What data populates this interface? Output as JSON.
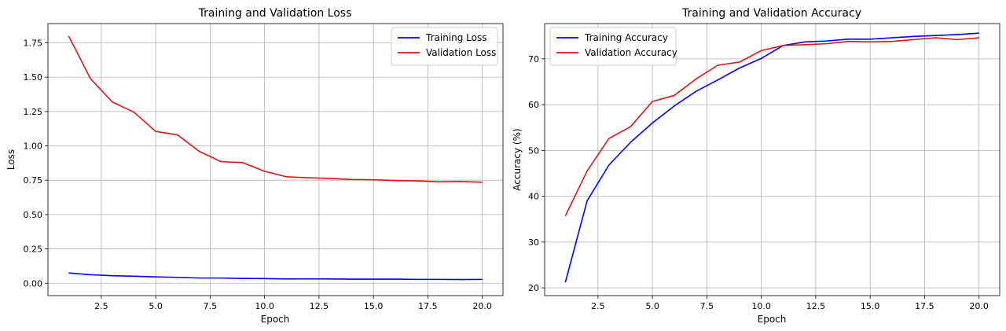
{
  "chart_data": [
    {
      "type": "line",
      "title": "Training and Validation Loss",
      "xlabel": "Epoch",
      "ylabel": "Loss",
      "xlim": [
        0.05,
        20.95
      ],
      "ylim": [
        -0.09,
        1.89
      ],
      "xticks": [
        2.5,
        5.0,
        7.5,
        10.0,
        12.5,
        15.0,
        17.5,
        20.0
      ],
      "xtick_labels": [
        "2.5",
        "5.0",
        "7.5",
        "10.0",
        "12.5",
        "15.0",
        "17.5",
        "20.0"
      ],
      "yticks": [
        0.0,
        0.25,
        0.5,
        0.75,
        1.0,
        1.25,
        1.5,
        1.75
      ],
      "ytick_labels": [
        "0.00",
        "0.25",
        "0.50",
        "0.75",
        "1.00",
        "1.25",
        "1.50",
        "1.75"
      ],
      "grid": true,
      "legend_position": "top-right",
      "x": [
        1,
        2,
        3,
        4,
        5,
        6,
        7,
        8,
        9,
        10,
        11,
        12,
        13,
        14,
        15,
        16,
        17,
        18,
        19,
        20
      ],
      "series": [
        {
          "name": "Training Loss",
          "color": "#0000ff",
          "values": [
            0.075,
            0.062,
            0.055,
            0.051,
            0.046,
            0.043,
            0.038,
            0.038,
            0.035,
            0.034,
            0.031,
            0.032,
            0.031,
            0.03,
            0.03,
            0.03,
            0.028,
            0.028,
            0.027,
            0.028
          ]
        },
        {
          "name": "Validation Loss",
          "color": "#dc1414",
          "values": [
            1.8,
            1.49,
            1.32,
            1.245,
            1.105,
            1.08,
            0.96,
            0.885,
            0.878,
            0.815,
            0.775,
            0.768,
            0.763,
            0.755,
            0.753,
            0.748,
            0.745,
            0.738,
            0.74,
            0.735
          ]
        }
      ]
    },
    {
      "type": "line",
      "title": "Training and Validation Accuracy",
      "xlabel": "Epoch",
      "ylabel": "Accuracy (%)",
      "xlim": [
        0.05,
        20.95
      ],
      "ylim": [
        18.3,
        77.7
      ],
      "xticks": [
        2.5,
        5.0,
        7.5,
        10.0,
        12.5,
        15.0,
        17.5,
        20.0
      ],
      "xtick_labels": [
        "2.5",
        "5.0",
        "7.5",
        "10.0",
        "12.5",
        "15.0",
        "17.5",
        "20.0"
      ],
      "yticks": [
        20,
        30,
        40,
        50,
        60,
        70
      ],
      "ytick_labels": [
        "20",
        "30",
        "40",
        "50",
        "60",
        "70"
      ],
      "grid": true,
      "legend_position": "top-left",
      "x": [
        1,
        2,
        3,
        4,
        5,
        6,
        7,
        8,
        9,
        10,
        11,
        12,
        13,
        14,
        15,
        16,
        17,
        18,
        19,
        20
      ],
      "series": [
        {
          "name": "Training Accuracy",
          "color": "#0000ff",
          "values": [
            21.2,
            39.0,
            46.8,
            51.8,
            56.0,
            59.7,
            62.9,
            65.4,
            68.0,
            70.1,
            72.9,
            73.7,
            73.9,
            74.3,
            74.3,
            74.6,
            74.9,
            75.1,
            75.3,
            75.6
          ]
        },
        {
          "name": "Validation Accuracy",
          "color": "#dc1414",
          "values": [
            35.7,
            45.5,
            52.6,
            55.2,
            60.7,
            62.0,
            65.6,
            68.6,
            69.3,
            71.8,
            72.9,
            73.1,
            73.3,
            73.8,
            73.7,
            73.8,
            74.2,
            74.6,
            74.2,
            74.6
          ]
        }
      ]
    }
  ]
}
